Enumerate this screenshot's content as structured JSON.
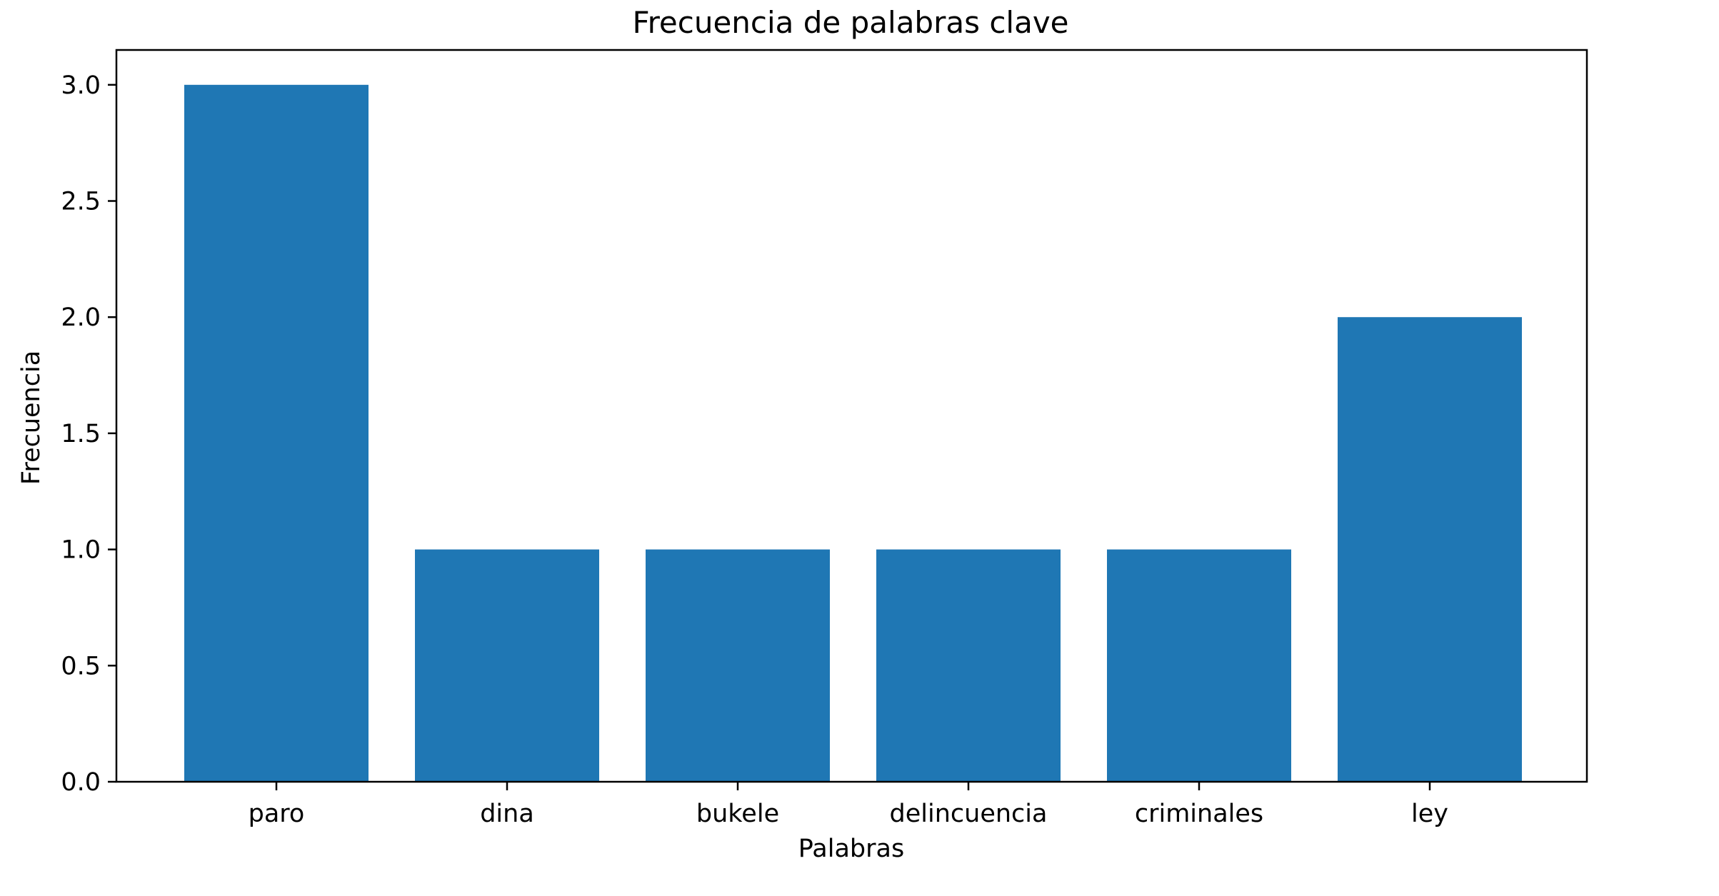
{
  "chart_data": {
    "type": "bar",
    "title": "Frecuencia de palabras clave",
    "xlabel": "Palabras",
    "ylabel": "Frecuencia",
    "categories": [
      "paro",
      "dina",
      "bukele",
      "delincuencia",
      "criminales",
      "ley"
    ],
    "values": [
      3,
      1,
      1,
      1,
      1,
      2
    ],
    "ylim": [
      0,
      3.15
    ],
    "yticks": [
      "0.0",
      "0.5",
      "1.0",
      "1.5",
      "2.0",
      "2.5",
      "3.0"
    ],
    "bar_color": "#1f77b4",
    "grid": false,
    "legend": "none"
  }
}
